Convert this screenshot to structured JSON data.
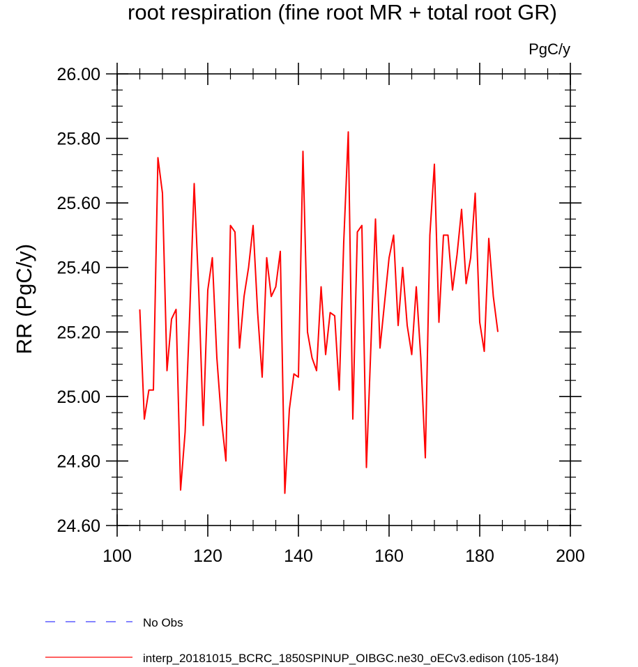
{
  "chart_data": {
    "type": "line",
    "title": "root respiration (fine root MR + total root GR)",
    "units_label": "PgC/y",
    "ylabel": "RR  (PgC/y)",
    "xlabel": "",
    "xlim": [
      100,
      200
    ],
    "ylim": [
      24.6,
      26.0
    ],
    "x_ticks": [
      100,
      120,
      140,
      160,
      180,
      200
    ],
    "x_tick_labels": [
      "100",
      "120",
      "140",
      "160",
      "180",
      "200"
    ],
    "y_ticks": [
      24.6,
      24.8,
      25.0,
      25.2,
      25.4,
      25.6,
      25.8,
      26.0
    ],
    "y_tick_labels": [
      "24.60",
      "24.80",
      "25.00",
      "25.20",
      "25.40",
      "25.60",
      "25.80",
      "26.00"
    ],
    "grid": false,
    "legend_position": "below plot",
    "series": [
      {
        "name": "interp_20181015_BCRC_1850SPINUP_OIBGC.ne30_oECv3.edison (105-184)",
        "color": "#ff0000",
        "style": "solid",
        "x": [
          105,
          106,
          107,
          108,
          109,
          110,
          111,
          112,
          113,
          114,
          115,
          116,
          117,
          118,
          119,
          120,
          121,
          122,
          123,
          124,
          125,
          126,
          127,
          128,
          129,
          130,
          131,
          132,
          133,
          134,
          135,
          136,
          137,
          138,
          139,
          140,
          141,
          142,
          143,
          144,
          145,
          146,
          147,
          148,
          149,
          150,
          151,
          152,
          153,
          154,
          155,
          156,
          157,
          158,
          159,
          160,
          161,
          162,
          163,
          164,
          165,
          166,
          167,
          168,
          169,
          170,
          171,
          172,
          173,
          174,
          175,
          176,
          177,
          178,
          179,
          180,
          181,
          182,
          183,
          184
        ],
        "y": [
          25.27,
          24.93,
          25.02,
          25.02,
          25.74,
          25.63,
          25.08,
          25.24,
          25.27,
          24.71,
          24.89,
          25.25,
          25.66,
          25.33,
          24.91,
          25.33,
          25.43,
          25.12,
          24.93,
          24.8,
          25.53,
          25.51,
          25.15,
          25.31,
          25.4,
          25.53,
          25.26,
          25.06,
          25.43,
          25.31,
          25.34,
          25.45,
          24.7,
          24.96,
          25.07,
          25.06,
          25.76,
          25.2,
          25.12,
          25.08,
          25.34,
          25.13,
          25.26,
          25.25,
          25.02,
          25.48,
          25.82,
          24.93,
          25.51,
          25.53,
          24.78,
          25.16,
          25.55,
          25.15,
          25.29,
          25.43,
          25.5,
          25.22,
          25.4,
          25.22,
          25.13,
          25.34,
          25.12,
          24.81,
          25.5,
          25.72,
          25.23,
          25.5,
          25.5,
          25.33,
          25.44,
          25.58,
          25.35,
          25.43,
          25.63,
          25.23,
          25.14,
          25.49,
          25.31,
          25.2
        ]
      }
    ],
    "legend": [
      {
        "label": "No Obs",
        "color": "#3b3bff",
        "style": "dashed"
      },
      {
        "label": "interp_20181015_BCRC_1850SPINUP_OIBGC.ne30_oECv3.edison (105-184)",
        "color": "#ff0000",
        "style": "solid"
      }
    ]
  }
}
